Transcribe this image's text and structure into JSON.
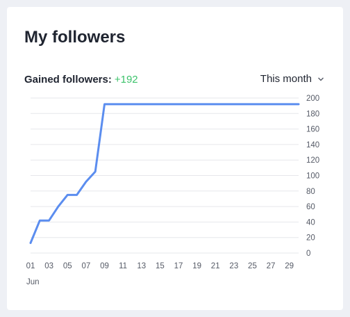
{
  "title": "My followers",
  "gained_label": "Gained followers:",
  "gained_value": "+192",
  "period": "This month",
  "icons": {
    "period_dropdown": "chevron-down-icon"
  },
  "colors": {
    "line": "#5b8def",
    "gained": "#3cc36b",
    "grid": "#e6e7eb"
  },
  "chart_data": {
    "type": "line",
    "x_tick_labels": [
      "01",
      "03",
      "05",
      "07",
      "09",
      "11",
      "13",
      "15",
      "17",
      "19",
      "21",
      "23",
      "25",
      "27",
      "29"
    ],
    "x_sub_label": "Jun",
    "ylim": [
      0,
      200
    ],
    "y_ticks": [
      0,
      20,
      40,
      60,
      80,
      100,
      120,
      140,
      160,
      180,
      200
    ],
    "y_axis_side": "right",
    "grid": true,
    "series": [
      {
        "x": [
          1,
          2,
          3,
          4,
          5,
          6,
          7,
          8,
          9,
          10,
          11,
          12,
          13,
          14,
          15,
          16,
          17,
          18,
          19,
          20,
          21,
          22,
          23,
          24,
          25,
          26,
          27,
          28,
          29,
          30
        ],
        "values": [
          13,
          42,
          42,
          60,
          75,
          75,
          92,
          105,
          192,
          192,
          192,
          192,
          192,
          192,
          192,
          192,
          192,
          192,
          192,
          192,
          192,
          192,
          192,
          192,
          192,
          192,
          192,
          192,
          192,
          192
        ]
      }
    ]
  }
}
